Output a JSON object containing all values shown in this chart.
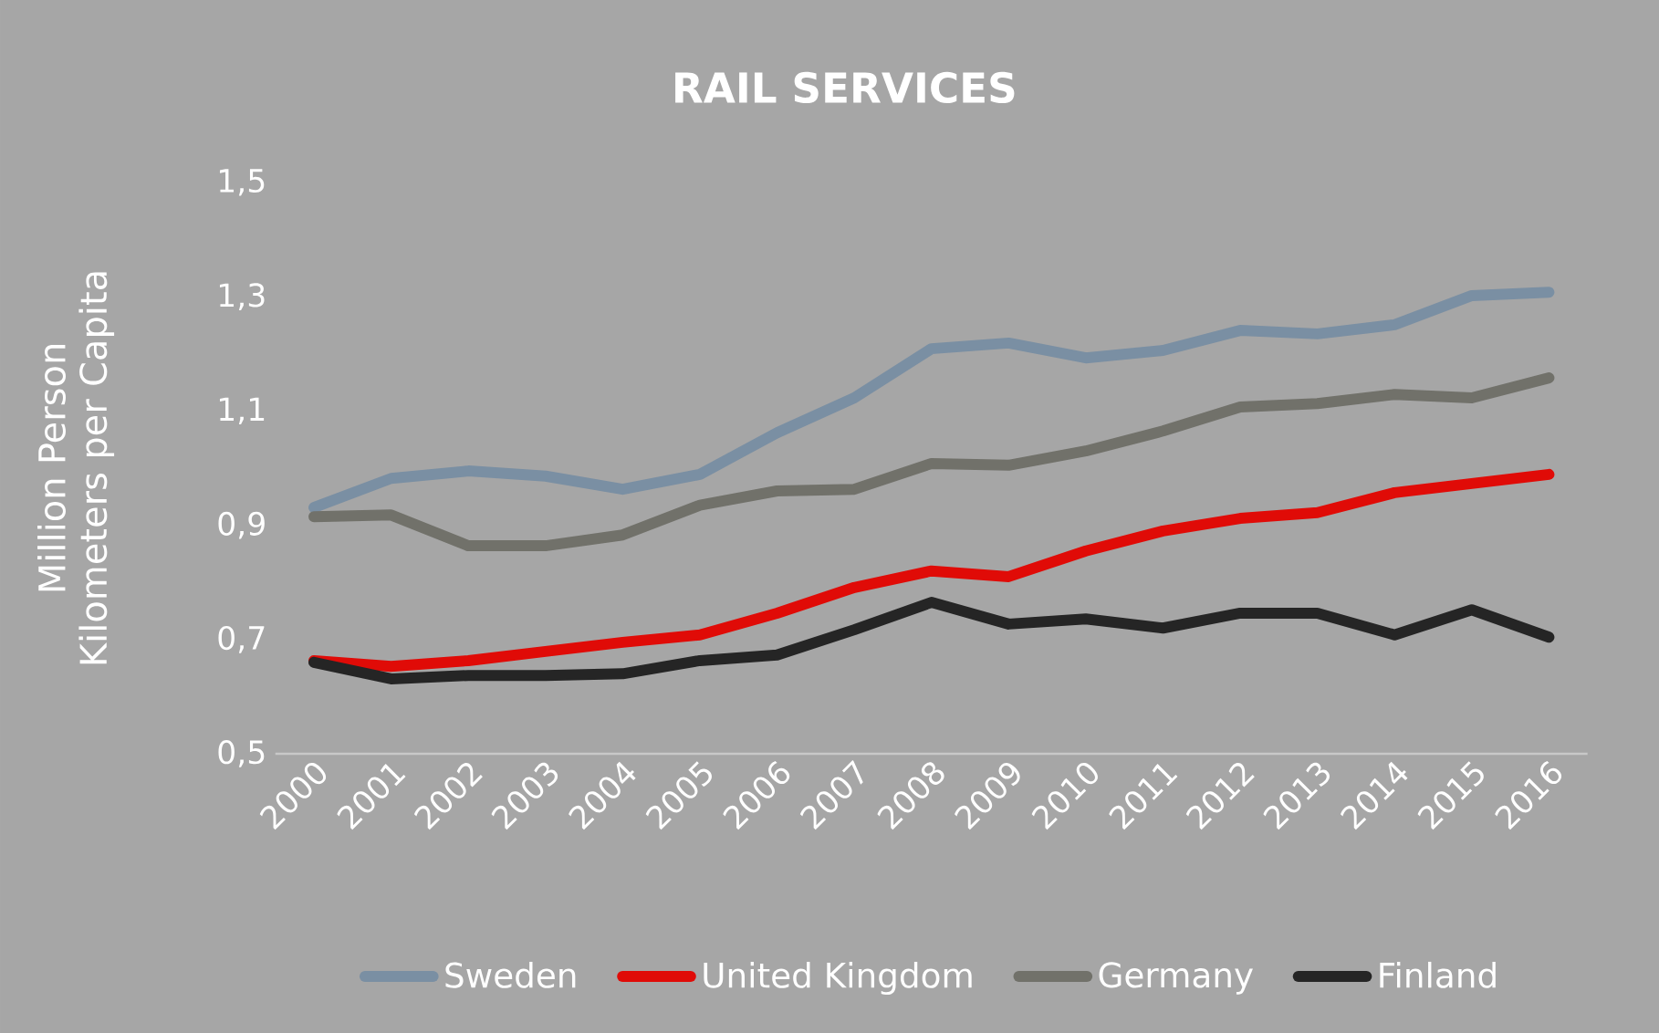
{
  "chart_data": {
    "type": "line",
    "title": "RAIL SERVICES",
    "ylabel": "Million Person Kilometers per Capita",
    "categories": [
      "2000",
      "2001",
      "2002",
      "2003",
      "2004",
      "2005",
      "2006",
      "2007",
      "2008",
      "2009",
      "2010",
      "2011",
      "2012",
      "2013",
      "2014",
      "2015",
      "2016"
    ],
    "ylim": [
      0.5,
      1.5
    ],
    "yticks": [
      {
        "value": 0.5,
        "label": "0,5"
      },
      {
        "value": 0.7,
        "label": "0,7"
      },
      {
        "value": 0.9,
        "label": "0,9"
      },
      {
        "value": 1.1,
        "label": "1,1"
      },
      {
        "value": 1.3,
        "label": "1,3"
      },
      {
        "value": 1.5,
        "label": "1,5"
      }
    ],
    "grid": false,
    "legend": "bottom",
    "marker": "none",
    "line_style": "solid",
    "series": [
      {
        "name": "Sweden",
        "color": "#7a8fa3",
        "values": [
          0.931,
          0.982,
          0.995,
          0.986,
          0.963,
          0.989,
          1.062,
          1.123,
          1.209,
          1.219,
          1.193,
          1.206,
          1.241,
          1.235,
          1.251,
          1.302,
          1.308
        ]
      },
      {
        "name": "United Kingdom",
        "color": "#e00b07",
        "values": [
          0.663,
          0.653,
          0.663,
          0.679,
          0.695,
          0.708,
          0.746,
          0.791,
          0.82,
          0.81,
          0.855,
          0.89,
          0.912,
          0.922,
          0.957,
          0.973,
          0.989
        ]
      },
      {
        "name": "Germany",
        "color": "#71716a",
        "values": [
          0.915,
          0.918,
          0.864,
          0.864,
          0.883,
          0.935,
          0.96,
          0.963,
          1.008,
          1.005,
          1.03,
          1.065,
          1.107,
          1.113,
          1.129,
          1.123,
          1.158
        ]
      },
      {
        "name": "Finland",
        "color": "#252525",
        "values": [
          0.66,
          0.631,
          0.637,
          0.637,
          0.64,
          0.663,
          0.673,
          0.717,
          0.765,
          0.727,
          0.736,
          0.72,
          0.746,
          0.746,
          0.708,
          0.752,
          0.704
        ]
      }
    ]
  }
}
